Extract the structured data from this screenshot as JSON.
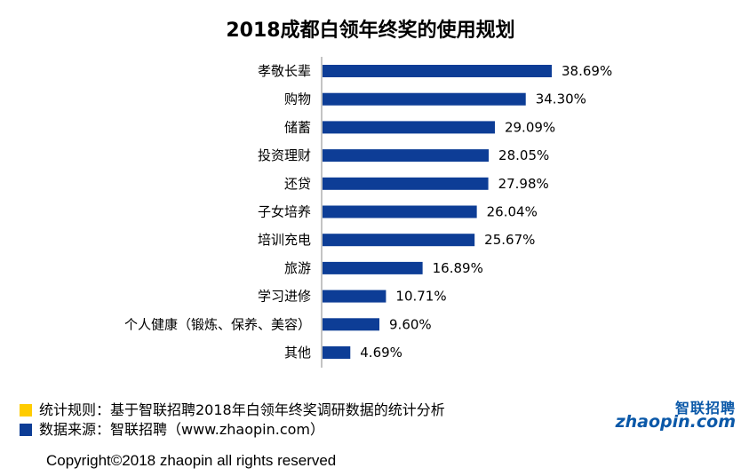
{
  "colors": {
    "bar": "#0d3d96",
    "legend_rule": "#ffcc00",
    "legend_source": "#0d3d96",
    "logo": "#0a58a8",
    "logo_dot": "#ffcc00"
  },
  "chart_data": {
    "type": "bar",
    "orientation": "horizontal",
    "title": "2018成都白领年终奖的使用规划",
    "categories": [
      "孝敬长辈",
      "购物",
      "储蓄",
      "投资理财",
      "还贷",
      "子女培养",
      "培训充电",
      "旅游",
      "学习进修",
      "个人健康（锻炼、保养、美容）",
      "其他"
    ],
    "values": [
      38.69,
      34.3,
      29.09,
      28.05,
      27.98,
      26.04,
      25.67,
      16.89,
      10.71,
      9.6,
      4.69
    ],
    "value_labels": [
      "38.69%",
      "34.30%",
      "29.09%",
      "28.05%",
      "27.98%",
      "26.04%",
      "25.67%",
      "16.89%",
      "10.71%",
      "9.60%",
      "4.69%"
    ],
    "unit": "%",
    "xlim": [
      0,
      45
    ],
    "grid": false
  },
  "legend": {
    "rule_text": "统计规则：基于智联招聘2018年白领年终奖调研数据的统计分析",
    "source_text": "数据来源：智联招聘（www.zhaopin.com）"
  },
  "logo": {
    "cn": "智联招聘",
    "en": "zhaopin.com"
  },
  "copyright": "Copyright©2018 zhaopin all rights reserved"
}
